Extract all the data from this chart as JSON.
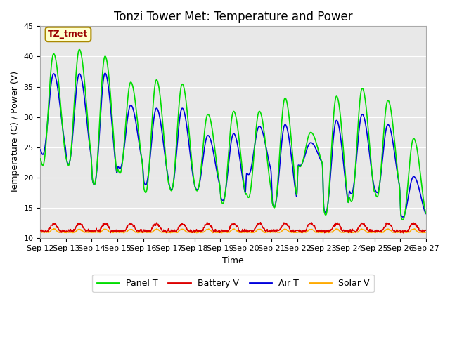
{
  "title": "Tonzi Tower Met: Temperature and Power",
  "xlabel": "Time",
  "ylabel": "Temperature (C) / Power (V)",
  "ylim": [
    10,
    45
  ],
  "yticks": [
    10,
    15,
    20,
    25,
    30,
    35,
    40,
    45
  ],
  "xtick_labels": [
    "Sep 12",
    "Sep 13",
    "Sep 14",
    "Sep 15",
    "Sep 16",
    "Sep 17",
    "Sep 18",
    "Sep 19",
    "Sep 20",
    "Sep 21",
    "Sep 22",
    "Sep 23",
    "Sep 24",
    "Sep 25",
    "Sep 26",
    "Sep 27"
  ],
  "annotation_text": "TZ_tmet",
  "annotation_bg": "#ffffcc",
  "annotation_fg": "#990000",
  "annotation_edge": "#aa8800",
  "panel_color": "#00dd00",
  "battery_color": "#dd0000",
  "air_color": "#0000dd",
  "solar_color": "#ffaa00",
  "plot_bg_color": "#e8e8e8",
  "grid_color": "#ffffff",
  "title_fontsize": 12,
  "axis_label_fontsize": 9,
  "tick_fontsize": 8,
  "legend_labels": [
    "Panel T",
    "Battery V",
    "Air T",
    "Solar V"
  ],
  "n_days": 15,
  "samples_per_day": 96,
  "panel_peaks": [
    40.5,
    41.2,
    40.1,
    35.8,
    36.2,
    35.5,
    30.5,
    31.0,
    31.0,
    33.2,
    27.5,
    33.5,
    34.8,
    32.8,
    26.5
  ],
  "panel_mins": [
    22.0,
    22.0,
    18.8,
    20.7,
    17.5,
    17.8,
    17.8,
    15.7,
    16.7,
    15.0,
    21.8,
    13.8,
    16.0,
    16.8,
    13.0
  ],
  "air_peaks": [
    37.2,
    37.2,
    37.3,
    32.0,
    31.5,
    31.5,
    27.0,
    27.3,
    28.5,
    28.8,
    25.8,
    29.5,
    30.5,
    28.8,
    20.2
  ],
  "air_mins": [
    23.8,
    22.2,
    18.8,
    21.5,
    18.8,
    18.0,
    18.0,
    16.2,
    20.5,
    15.2,
    22.0,
    14.2,
    17.3,
    17.5,
    13.5
  ],
  "batt_base": 11.2,
  "batt_amp": 1.2,
  "solar_base": 11.0,
  "solar_amp": 0.5
}
